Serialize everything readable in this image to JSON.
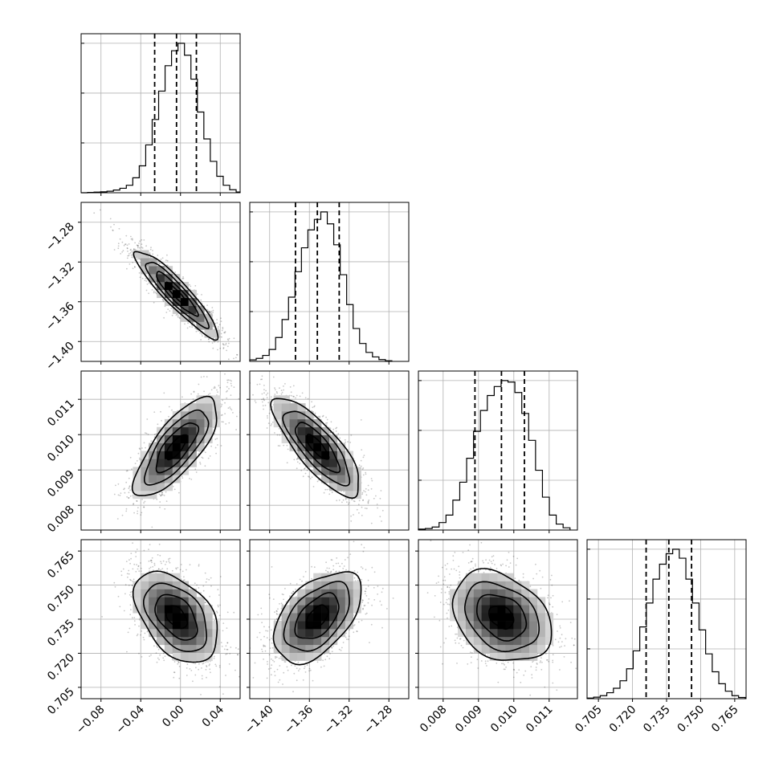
{
  "chart_data": {
    "type": "corner",
    "grid": true,
    "parameters": [
      {
        "range": [
          -0.1,
          0.06
        ],
        "ticks": [
          -0.08,
          -0.04,
          0.0,
          0.04
        ],
        "tick_labels": [
          "−0.08",
          "−0.04",
          "0.00",
          "0.04"
        ],
        "median": -0.004,
        "quantiles_16_84": [
          -0.026,
          0.016
        ],
        "hist_bin_width": 0.0065,
        "hist_bins": [
          [
            -0.1,
            0.0
          ],
          [
            -0.0935,
            0.002
          ],
          [
            -0.087,
            0.004
          ],
          [
            -0.0805,
            0.006
          ],
          [
            -0.074,
            0.01
          ],
          [
            -0.0675,
            0.018
          ],
          [
            -0.061,
            0.03
          ],
          [
            -0.0545,
            0.05
          ],
          [
            -0.048,
            0.1
          ],
          [
            -0.0415,
            0.18
          ],
          [
            -0.035,
            0.32
          ],
          [
            -0.0285,
            0.49
          ],
          [
            -0.022,
            0.68
          ],
          [
            -0.0155,
            0.85
          ],
          [
            -0.009,
            0.95
          ],
          [
            -0.0025,
            1.0
          ],
          [
            0.004,
            0.92
          ],
          [
            0.0105,
            0.76
          ],
          [
            0.017,
            0.54
          ],
          [
            0.0235,
            0.36
          ],
          [
            0.03,
            0.21
          ],
          [
            0.0365,
            0.11
          ],
          [
            0.043,
            0.05
          ],
          [
            0.0495,
            0.02
          ],
          [
            0.056,
            0.005
          ]
        ]
      },
      {
        "range": [
          -1.42,
          -1.26
        ],
        "ticks": [
          -1.4,
          -1.36,
          -1.32,
          -1.28
        ],
        "tick_labels": [
          "−1.40",
          "−1.36",
          "−1.32",
          "−1.28"
        ],
        "median": -1.352,
        "quantiles_16_84": [
          -1.374,
          -1.33
        ],
        "hist_bin_width": 0.0065,
        "hist_bins": [
          [
            -1.42,
            0.01
          ],
          [
            -1.4135,
            0.02
          ],
          [
            -1.407,
            0.04
          ],
          [
            -1.4005,
            0.08
          ],
          [
            -1.394,
            0.16
          ],
          [
            -1.3875,
            0.28
          ],
          [
            -1.381,
            0.43
          ],
          [
            -1.3745,
            0.6
          ],
          [
            -1.368,
            0.76
          ],
          [
            -1.3615,
            0.88
          ],
          [
            -1.355,
            0.95
          ],
          [
            -1.3485,
            1.0
          ],
          [
            -1.342,
            0.92
          ],
          [
            -1.3355,
            0.78
          ],
          [
            -1.329,
            0.58
          ],
          [
            -1.3225,
            0.38
          ],
          [
            -1.316,
            0.22
          ],
          [
            -1.3095,
            0.12
          ],
          [
            -1.303,
            0.06
          ],
          [
            -1.2965,
            0.03
          ],
          [
            -1.29,
            0.012
          ],
          [
            -1.2835,
            0.004
          ]
        ]
      },
      {
        "range": [
          0.0073,
          0.0118
        ],
        "ticks": [
          0.008,
          0.009,
          0.01,
          0.011
        ],
        "tick_labels": [
          "0.008",
          "0.009",
          "0.010",
          "0.011"
        ],
        "median": 0.00965,
        "quantiles_16_84": [
          0.0089,
          0.0103
        ],
        "hist_bin_width": 0.000195,
        "hist_bins": [
          [
            0.0073,
            0.006
          ],
          [
            0.007495,
            0.01
          ],
          [
            0.00769,
            0.02
          ],
          [
            0.007885,
            0.05
          ],
          [
            0.00808,
            0.1
          ],
          [
            0.008275,
            0.2
          ],
          [
            0.00847,
            0.32
          ],
          [
            0.008665,
            0.48
          ],
          [
            0.00886,
            0.66
          ],
          [
            0.009055,
            0.8
          ],
          [
            0.00925,
            0.9
          ],
          [
            0.009445,
            0.96
          ],
          [
            0.00964,
            1.0
          ],
          [
            0.009835,
            0.99
          ],
          [
            0.01003,
            0.92
          ],
          [
            0.010225,
            0.78
          ],
          [
            0.01042,
            0.6
          ],
          [
            0.010615,
            0.4
          ],
          [
            0.01081,
            0.22
          ],
          [
            0.011005,
            0.1
          ],
          [
            0.0112,
            0.04
          ],
          [
            0.011395,
            0.015
          ]
        ]
      },
      {
        "range": [
          0.7,
          0.77
        ],
        "ticks": [
          0.705,
          0.72,
          0.735,
          0.75,
          0.765
        ],
        "tick_labels": [
          "0.705",
          "0.720",
          "0.735",
          "0.750",
          "0.765"
        ],
        "median": 0.736,
        "quantiles_16_84": [
          0.726,
          0.746
        ],
        "hist_bin_width": 0.0029,
        "hist_bins": [
          [
            0.7,
            0.004
          ],
          [
            0.7029,
            0.01
          ],
          [
            0.7058,
            0.02
          ],
          [
            0.7087,
            0.04
          ],
          [
            0.7116,
            0.07
          ],
          [
            0.7145,
            0.12
          ],
          [
            0.7174,
            0.2
          ],
          [
            0.7203,
            0.32
          ],
          [
            0.7232,
            0.48
          ],
          [
            0.7261,
            0.64
          ],
          [
            0.729,
            0.8
          ],
          [
            0.7319,
            0.9
          ],
          [
            0.7348,
            0.97
          ],
          [
            0.7377,
            1.0
          ],
          [
            0.7406,
            0.94
          ],
          [
            0.7435,
            0.8
          ],
          [
            0.7464,
            0.64
          ],
          [
            0.7493,
            0.46
          ],
          [
            0.7522,
            0.3
          ],
          [
            0.7551,
            0.18
          ],
          [
            0.758,
            0.1
          ],
          [
            0.7609,
            0.05
          ],
          [
            0.7638,
            0.02
          ],
          [
            0.7667,
            0.008
          ]
        ]
      }
    ],
    "pairs": [
      {
        "x": 0,
        "y": 1,
        "center": [
          -0.004,
          -1.352
        ],
        "sigma": [
          0.021,
          0.022
        ],
        "rho": -0.92
      },
      {
        "x": 0,
        "y": 2,
        "center": [
          -0.004,
          0.00965
        ],
        "sigma": [
          0.021,
          0.0007
        ],
        "rho": 0.75
      },
      {
        "x": 1,
        "y": 2,
        "center": [
          -1.352,
          0.00965
        ],
        "sigma": [
          0.022,
          0.0007
        ],
        "rho": -0.8
      },
      {
        "x": 0,
        "y": 3,
        "center": [
          -0.004,
          0.736
        ],
        "sigma": [
          0.021,
          0.01
        ],
        "rho": -0.45
      },
      {
        "x": 1,
        "y": 3,
        "center": [
          -1.352,
          0.736
        ],
        "sigma": [
          0.022,
          0.01
        ],
        "rho": 0.5
      },
      {
        "x": 2,
        "y": 3,
        "center": [
          0.00965,
          0.736
        ],
        "sigma": [
          0.0007,
          0.01
        ],
        "rho": -0.3
      }
    ],
    "contour_levels_sigma": [
      0.5,
      1.0,
      1.5,
      2.0
    ]
  }
}
